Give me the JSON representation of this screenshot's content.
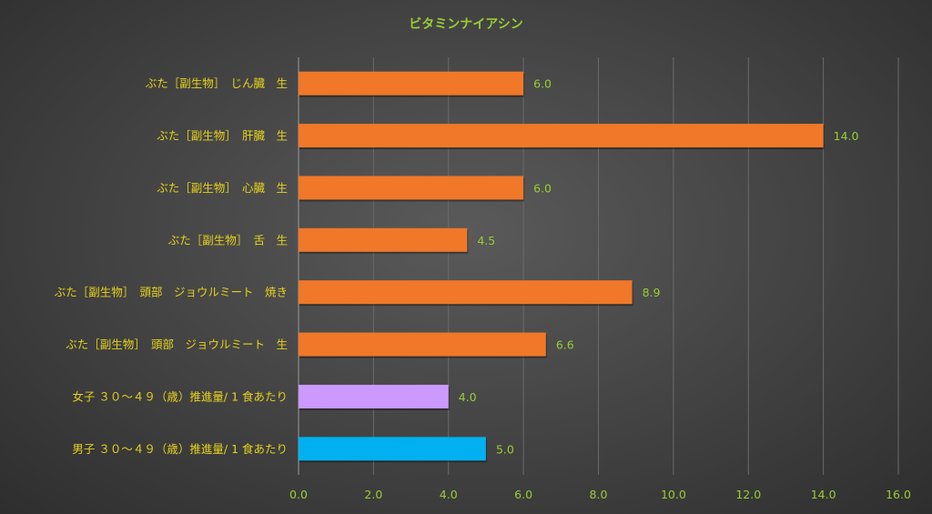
{
  "chart_data": {
    "type": "bar",
    "orientation": "horizontal",
    "title": "ビタミンナイアシン",
    "categories": [
      "ぶた［副生物］　じん臓　生",
      "ぶた［副生物］　肝臓　生",
      "ぶた［副生物］　心臓　生",
      "ぶた［副生物］　舌　生",
      "ぶた［副生物］　頭部　ジョウルミート　焼き",
      "ぶた［副生物］　頭部　ジョウルミート　生",
      "女子 ３０～４９（歳）推進量/ 1 食あたり",
      "男子 ３０～４９（歳）推進量/ 1 食あたり"
    ],
    "values": [
      6.0,
      14.0,
      6.0,
      4.5,
      8.9,
      6.6,
      4.0,
      5.0
    ],
    "value_labels": [
      "6.0",
      "14.0",
      "6.0",
      "4.5",
      "8.9",
      "6.6",
      "4.0",
      "5.0"
    ],
    "bar_colors": [
      "#f07828",
      "#f07828",
      "#f07828",
      "#f07828",
      "#f07828",
      "#f07828",
      "#cc99ff",
      "#00b0f0"
    ],
    "xlim": [
      0,
      16
    ],
    "xticks": [
      "0.0",
      "2.0",
      "4.0",
      "6.0",
      "8.0",
      "10.0",
      "12.0",
      "14.0",
      "16.0"
    ],
    "grid": true,
    "legend": "none"
  }
}
